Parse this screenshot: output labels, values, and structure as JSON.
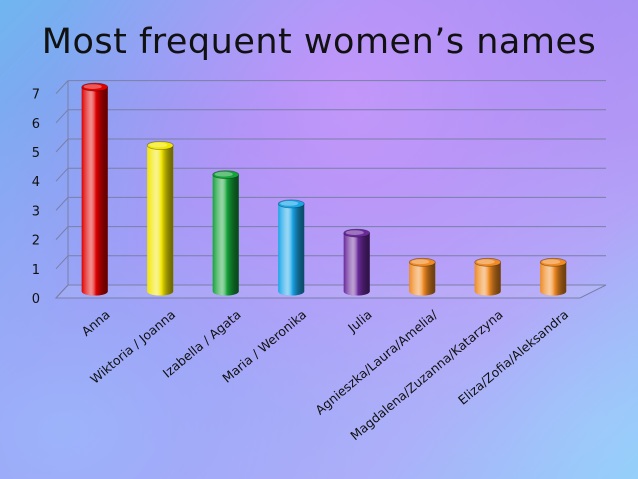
{
  "chart_data": {
    "type": "bar",
    "title": "Most frequent women’s names",
    "categories": [
      "Anna",
      "Wiktoria / Joanna",
      "Izabella / Agata",
      "Maria / Weronika",
      "Julia",
      "Agnieszka/Laura/Amelia/",
      "Magdalena/Zuzanna/Katarzyna",
      "Eliza/Zofia/Aleksandra"
    ],
    "values": [
      7,
      5,
      4,
      3,
      2,
      1,
      1,
      1
    ],
    "colors": [
      "#e00000",
      "#f2e600",
      "#16a33a",
      "#1aa6e8",
      "#6a2a9c",
      "#f08a22",
      "#f08a22",
      "#f08a22"
    ],
    "ylim": [
      0,
      7
    ],
    "yticks": [
      "0",
      "1",
      "2",
      "3",
      "4",
      "5",
      "6",
      "7"
    ],
    "grid": true,
    "style": "3d-cylinder"
  }
}
